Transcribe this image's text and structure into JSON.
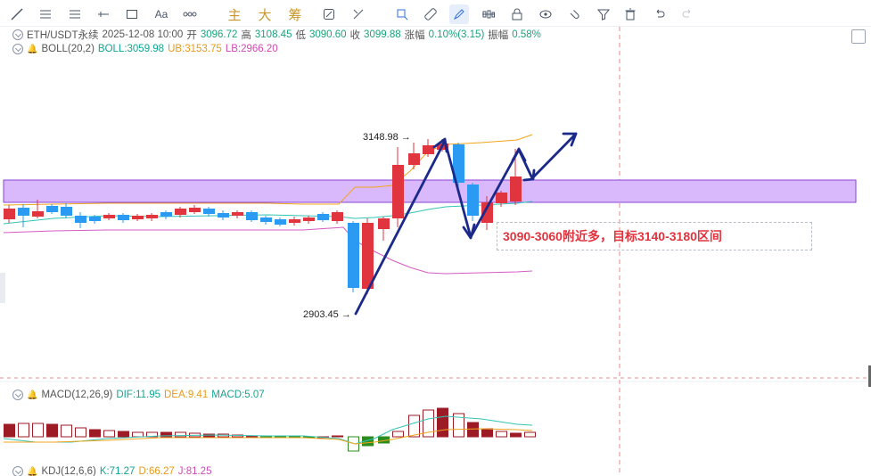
{
  "toolbar": {
    "tools": [
      {
        "name": "trend-line-icon",
        "glyph": "⟋"
      },
      {
        "name": "parallel-lines-icon",
        "glyph": "☰"
      },
      {
        "name": "horizontal-lines-icon",
        "glyph": "≡"
      },
      {
        "name": "ray-line-icon",
        "glyph": "⊣"
      },
      {
        "name": "rectangle-icon",
        "glyph": "▢"
      },
      {
        "name": "text-tool-icon",
        "glyph": "Aa"
      },
      {
        "name": "node-path-icon",
        "glyph": "⋯"
      }
    ],
    "text_tools": [
      "主",
      "大",
      "筹"
    ],
    "right_tools": [
      {
        "name": "brush-icon",
        "glyph": "✎"
      },
      {
        "name": "measure-icon",
        "glyph": "⤡"
      },
      {
        "name": "flag-icon",
        "glyph": "⚑"
      },
      {
        "name": "ruler-icon",
        "glyph": "⊘"
      },
      {
        "name": "pen-icon",
        "glyph": "✍",
        "active": true
      },
      {
        "name": "candles-icon",
        "glyph": "▥"
      },
      {
        "name": "lock-icon",
        "glyph": "🔒"
      },
      {
        "name": "eye-icon",
        "glyph": "◉"
      },
      {
        "name": "magnet-icon",
        "glyph": "⊃"
      },
      {
        "name": "filter-icon",
        "glyph": "⏷"
      },
      {
        "name": "trash-icon",
        "glyph": "🗑"
      },
      {
        "name": "undo-icon",
        "glyph": "↶"
      },
      {
        "name": "redo-icon",
        "glyph": "↷"
      }
    ]
  },
  "symbol": {
    "name": "ETH/USDT永续",
    "datetime": "2025-12-08 10:00",
    "open_label": "开",
    "open": "3096.72",
    "high_label": "高",
    "high": "3108.45",
    "low_label": "低",
    "low": "3090.60",
    "close_label": "收",
    "close": "3099.88",
    "change_label": "涨幅",
    "change": "0.10%(3.15)",
    "amp_label": "振幅",
    "amp": "0.58%"
  },
  "boll": {
    "name": "BOLL(20,2)",
    "boll": "BOLL:3059.98",
    "ub": "UB:3153.75",
    "lb": "LB:2966.20"
  },
  "macd": {
    "name": "MACD(12,26,9)",
    "dif": "DIF:11.95",
    "dea": "DEA:9.41",
    "macd": "MACD:5.07"
  },
  "kdj": {
    "name": "KDJ(12,6,6)",
    "k": "K:71.27",
    "d": "D:66.27",
    "j": "J:81.25"
  },
  "annotations": {
    "high_price": "3148.98",
    "low_price": "2903.45",
    "note": "3090-3060附近多，目标3140-3180区间"
  },
  "colors": {
    "up": "#e0343f",
    "down": "#2b9af3",
    "zone": "#d9b8fb",
    "arrow": "#1b2a8a",
    "ub": "#f2a51d",
    "mid": "#34c4b5",
    "lb": "#d45cc4"
  }
}
